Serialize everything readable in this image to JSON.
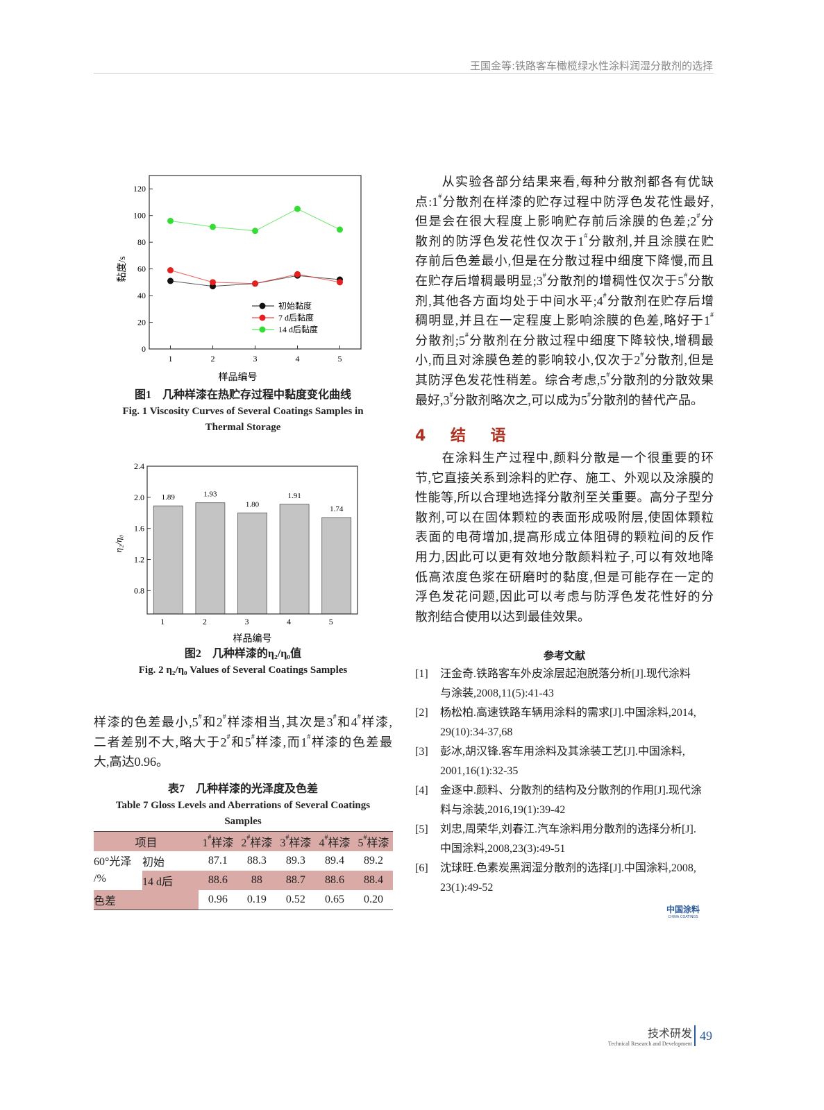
{
  "header": {
    "running_title": "王国金等:铁路客车橄榄绿水性涂料润湿分散剂的选择"
  },
  "chart_data": [
    {
      "type": "line",
      "title": "",
      "xlabel": "样品编号",
      "ylabel": "黏度/s",
      "categories": [
        "1",
        "2",
        "3",
        "4",
        "5"
      ],
      "yticks": [
        "0",
        "20",
        "40",
        "60",
        "80",
        "100",
        "120"
      ],
      "ylim": [
        0,
        130
      ],
      "legend_placement": "bottom-right",
      "series": [
        {
          "name": "初始黏度",
          "color": "#111111",
          "values": [
            51,
            47,
            49,
            55,
            52
          ]
        },
        {
          "name": "7 d后黏度",
          "color": "#e52020",
          "values": [
            59,
            50,
            49,
            56,
            50
          ]
        },
        {
          "name": "14 d后黏度",
          "color": "#33dd33",
          "values": [
            96,
            91.5,
            88.5,
            105,
            89.5
          ]
        }
      ]
    },
    {
      "type": "bar",
      "title": "",
      "xlabel": "样品编号",
      "ylabel": "η₂/η₀",
      "categories": [
        "1",
        "2",
        "3",
        "4",
        "5"
      ],
      "values": [
        1.89,
        1.93,
        1.8,
        1.91,
        1.74
      ],
      "labels": [
        "1.89",
        "1.93",
        "1.80",
        "1.91",
        "1.74"
      ],
      "yticks": [
        "0.8",
        "1.2",
        "1.6",
        "2.0",
        "2.4"
      ],
      "ylim": [
        0.5,
        2.4
      ],
      "bar_color": "#c4c4c4"
    }
  ],
  "fig1": {
    "cn": "图1　几种样漆在热贮存过程中黏度变化曲线",
    "en1": "Fig. 1  Viscosity Curves of Several Coatings Samples in",
    "en2": "Thermal Storage"
  },
  "fig2": {
    "cn": "图2　几种样漆的η₂/η₀值",
    "en": "Fig. 2   η₂/η₀ Values of Several Coatings Samples"
  },
  "left_para": [
    "样漆的色差最小,5#和2#样漆相当,其次是3#和4#样漆,",
    "二者差别不大,略大于2#和5#样漆,而1#样漆的色差最",
    "大,高达0.96。"
  ],
  "table7": {
    "cn": "表7　几种样漆的光泽度及色差",
    "en1": "Table 7   Gloss Levels and Aberrations of Several Coatings",
    "en2": "Samples",
    "header": [
      "项目",
      "1#样漆",
      "2#样漆",
      "3#样漆",
      "4#样漆",
      "5#样漆"
    ],
    "gloss_label": "60°光泽",
    "gloss_unit": "/%",
    "rows": [
      {
        "label": "初始",
        "values": [
          "87.1",
          "88.3",
          "89.3",
          "89.4",
          "89.2"
        ]
      },
      {
        "label": "14 d后",
        "values": [
          "88.6",
          "88",
          "88.7",
          "88.6",
          "88.4"
        ]
      }
    ],
    "aberration": {
      "label": "色差",
      "values": [
        "0.96",
        "0.19",
        "0.52",
        "0.65",
        "0.20"
      ]
    }
  },
  "right_para": [
    "　　从实验各部分结果来看,每种分散剂都各有优缺",
    "点:1#分散剂在样漆的贮存过程中防浮色发花性最好,",
    "但是会在很大程度上影响贮存前后涂膜的色差;2#分",
    "散剂的防浮色发花性仅次于1#分散剂,并且涂膜在贮",
    "存前后色差最小,但是在分散过程中细度下降慢,而且",
    "在贮存后增稠最明显;3#分散剂的增稠性仅次于5#分散",
    "剂,其他各方面均处于中间水平;4#分散剂在贮存后增",
    "稠明显,并且在一定程度上影响涂膜的色差,略好于1#",
    "分散剂;5#分散剂在分散过程中细度下降较快,增稠最",
    "小,而且对涂膜色差的影响较小,仅次于2#分散剂,但是",
    "其防浮色发花性稍差。综合考虑,5#分散剂的分散效果",
    "最好,3#分散剂略次之,可以成为5#分散剂的替代产品。"
  ],
  "section4": {
    "title": "4 结 语",
    "para": [
      "　　在涂料生产过程中,颜料分散是一个很重要的环",
      "节,它直接关系到涂料的贮存、施工、外观以及涂膜的",
      "性能等,所以合理地选择分散剂至关重要。高分子型分",
      "散剂,可以在固体颗粒的表面形成吸附层,使固体颗粒",
      "表面的电荷增加,提高形成立体阻碍的颗粒间的反作",
      "用力,因此可以更有效地分散颜料粒子,可以有效地降",
      "低高浓度色浆在研磨时的黏度,但是可能存在一定的",
      "浮色发花问题,因此可以考虑与防浮色发花性好的分",
      "散剂结合使用以达到最佳效果。"
    ]
  },
  "references": {
    "title": "参考文献",
    "items": [
      {
        "n": "[1]",
        "l1": "汪金奇.铁路客车外皮涂层起泡脱落分析[J].现代涂料",
        "l2": "与涂装,2008,11(5):41-43"
      },
      {
        "n": "[2]",
        "l1": "杨松柏.高速铁路车辆用涂料的需求[J].中国涂料,2014,",
        "l2": "29(10):34-37,68"
      },
      {
        "n": "[3]",
        "l1": "彭冰,胡汉锋.客车用涂料及其涂装工艺[J].中国涂料,",
        "l2": "2001,16(1):32-35"
      },
      {
        "n": "[4]",
        "l1": "金逐中.颜料、分散剂的结构及分散剂的作用[J].现代涂",
        "l2": "料与涂装,2016,19(1):39-42"
      },
      {
        "n": "[5]",
        "l1": "刘忠,周荣华,刘春江.汽车涂料用分散剂的选择分析[J].",
        "l2": "中国涂料,2008,23(3):49-51"
      },
      {
        "n": "[6]",
        "l1": "沈球旺.色素炭黑润湿分散剂的选择[J].中国涂料,2008,",
        "l2": "23(1):49-52"
      }
    ]
  },
  "logo": {
    "cn": "中国涂料",
    "en": "CHINA COATINGS",
    "color": "#2a5a9a"
  },
  "footer": {
    "section_cn": "技术研发",
    "section_en": "Technical Research and Development",
    "page": "49",
    "page_color": "#2a5a9a"
  }
}
